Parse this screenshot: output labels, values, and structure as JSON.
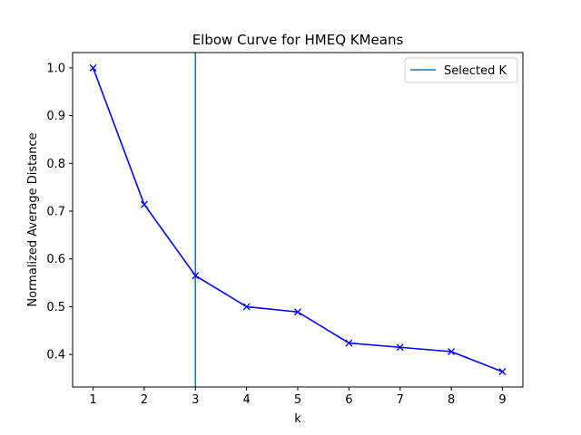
{
  "chart_data": {
    "type": "line",
    "title": "Elbow Curve for HMEQ KMeans",
    "xlabel": "k",
    "ylabel": "Normalized Average Distance",
    "x": [
      1,
      2,
      3,
      4,
      5,
      6,
      7,
      8,
      9
    ],
    "series": [
      {
        "values": [
          1.0,
          0.714,
          0.565,
          0.5,
          0.489,
          0.424,
          0.415,
          0.406,
          0.364
        ],
        "color": "#0000ff",
        "marker": "x"
      }
    ],
    "vline": {
      "x": 3,
      "name": "Selected K",
      "color": "#1f77b4"
    },
    "xlim": [
      0.6,
      9.4
    ],
    "ylim": [
      0.332,
      1.032
    ],
    "xticks": [
      1,
      2,
      3,
      4,
      5,
      6,
      7,
      8,
      9
    ],
    "yticks": [
      0.4,
      0.5,
      0.6,
      0.7,
      0.8,
      0.9,
      1.0
    ],
    "ytick_labels": [
      "0.4",
      "0.5",
      "0.6",
      "0.7",
      "0.8",
      "0.9",
      "1.0"
    ],
    "grid": false,
    "legend": "top-right"
  }
}
